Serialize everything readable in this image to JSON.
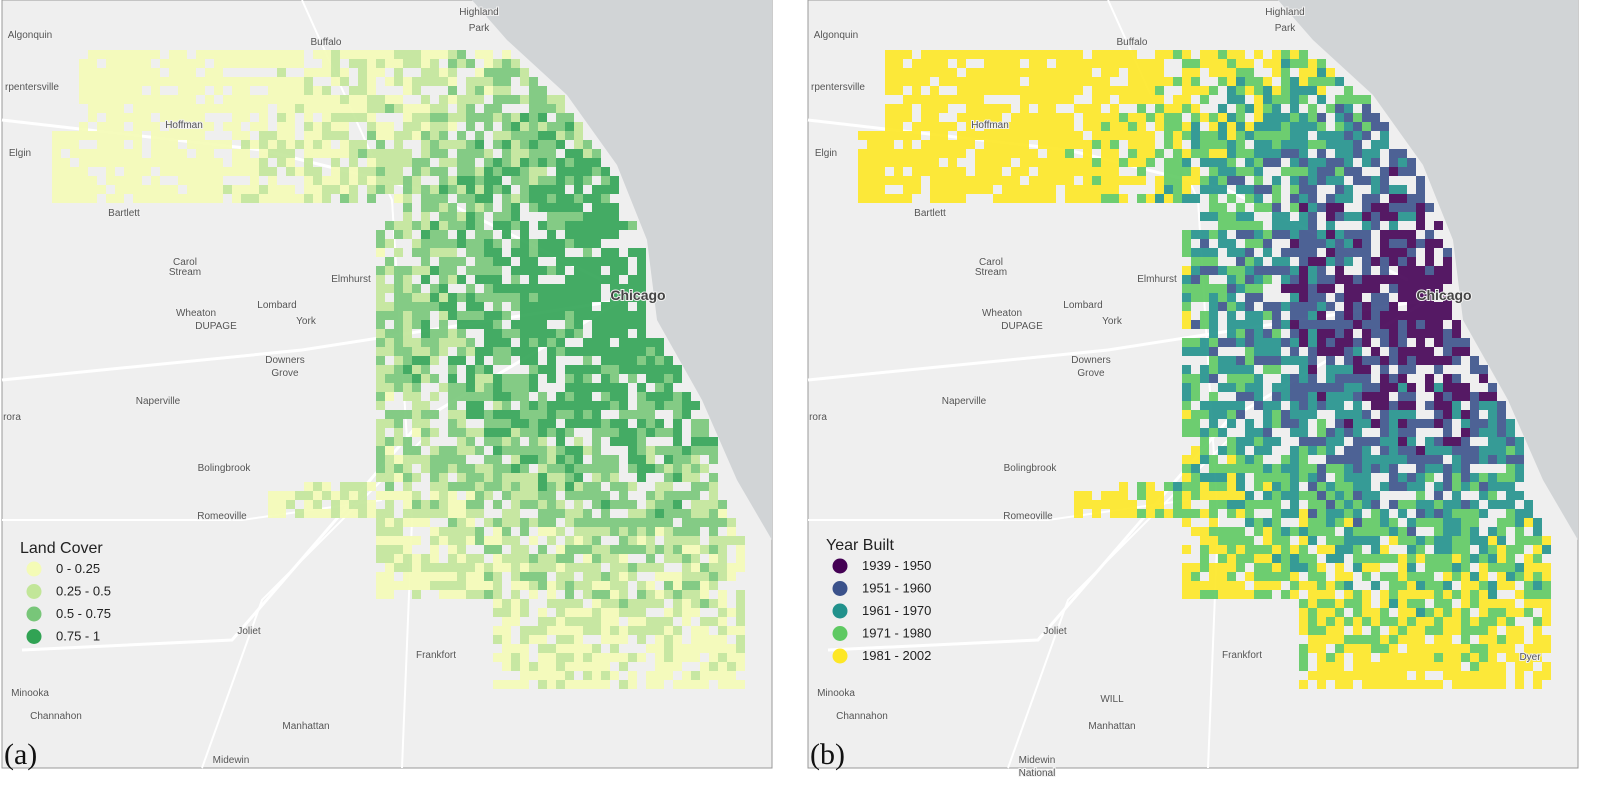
{
  "panels": [
    {
      "label": "(a)",
      "legend": {
        "title": "Land Cover",
        "items": [
          {
            "label": "0 - 0.25",
            "color": "#f4fbb6"
          },
          {
            "label": "0.25 - 0.5",
            "color": "#c2e699"
          },
          {
            "label": "0.5 - 0.75",
            "color": "#78c679"
          },
          {
            "label": "0.75 - 1",
            "color": "#31a354"
          }
        ]
      },
      "places": [
        "Algonquin",
        "Highland",
        "Park",
        "Buffalo",
        "rpentersville",
        "Hoffman",
        "Elgin",
        "Bartlett",
        "Carol",
        "Stream",
        "Wheaton",
        "DUPAGE",
        "Lombard",
        "York",
        "Elmhurst",
        "Chicago",
        "Downers",
        "Grove",
        "Naperville",
        "rora",
        "Bolingbrook",
        "Romeoville",
        "Joliet",
        "Frankfort",
        "Minooka",
        "Channahon",
        "Manhattan",
        "Midewin"
      ]
    },
    {
      "label": "(b)",
      "legend": {
        "title": "Year Built",
        "items": [
          {
            "label": "1939 - 1950",
            "color": "#440154"
          },
          {
            "label": "1951 - 1960",
            "color": "#3b528b"
          },
          {
            "label": "1961 - 1970",
            "color": "#21918c"
          },
          {
            "label": "1971 - 1980",
            "color": "#5ec962"
          },
          {
            "label": "1981 - 2002",
            "color": "#fde725"
          }
        ]
      },
      "places": [
        "Algonquin",
        "Highland",
        "Park",
        "Buffalo",
        "rpentersville",
        "Hoffman",
        "Elgin",
        "Bartlett",
        "Carol",
        "Stream",
        "Wheaton",
        "DUPAGE",
        "Lombard",
        "York",
        "Elmhurst",
        "Chicago",
        "Downers",
        "Grove",
        "Naperville",
        "rora",
        "Bolingbrook",
        "Romeoville",
        "Joliet",
        "Frankfort",
        "Minooka",
        "Channahon",
        "Manhattan",
        "Midewin",
        "National",
        "WILL",
        "Dyer"
      ]
    }
  ]
}
